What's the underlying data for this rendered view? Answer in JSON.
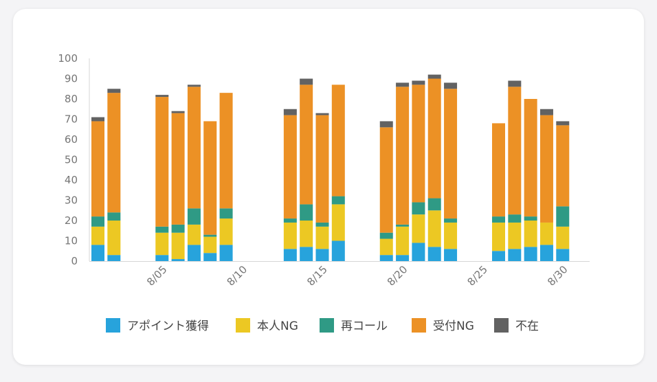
{
  "chart_data": {
    "type": "bar",
    "stacked": true,
    "title": "",
    "xlabel": "",
    "ylabel": "",
    "ylim": [
      0,
      100
    ],
    "yticks": [
      0,
      10,
      20,
      30,
      40,
      50,
      60,
      70,
      80,
      90,
      100
    ],
    "x_range": [
      1,
      31
    ],
    "xticks": [
      {
        "day": 5,
        "label": "8/05"
      },
      {
        "day": 10,
        "label": "8/10"
      },
      {
        "day": 15,
        "label": "8/15"
      },
      {
        "day": 20,
        "label": "8/20"
      },
      {
        "day": 25,
        "label": "8/25"
      },
      {
        "day": 30,
        "label": "8/30"
      }
    ],
    "days": [
      1,
      2,
      5,
      6,
      7,
      8,
      9,
      13,
      14,
      15,
      16,
      19,
      20,
      21,
      22,
      23,
      26,
      27,
      28,
      29,
      30
    ],
    "series": [
      {
        "name": "アポイント獲得",
        "color": "#27a3dc",
        "values": [
          8,
          3,
          3,
          1,
          8,
          4,
          8,
          6,
          7,
          6,
          10,
          3,
          3,
          9,
          7,
          6,
          5,
          6,
          7,
          8,
          6
        ]
      },
      {
        "name": "本人NG",
        "color": "#ecc823",
        "values": [
          9,
          17,
          11,
          13,
          10,
          8,
          13,
          13,
          13,
          11,
          18,
          8,
          14,
          14,
          18,
          13,
          14,
          13,
          13,
          11,
          11
        ]
      },
      {
        "name": "再コール",
        "color": "#2f9a85",
        "values": [
          5,
          4,
          3,
          4,
          8,
          1,
          5,
          2,
          8,
          2,
          4,
          3,
          1,
          6,
          6,
          2,
          3,
          4,
          2,
          0,
          10
        ]
      },
      {
        "name": "受付NG",
        "color": "#ec9125",
        "values": [
          47,
          59,
          64,
          55,
          60,
          56,
          57,
          51,
          59,
          53,
          55,
          52,
          68,
          58,
          59,
          64,
          46,
          63,
          58,
          53,
          40
        ]
      },
      {
        "name": "不在",
        "color": "#626262",
        "values": [
          2,
          2,
          1,
          1,
          1,
          0,
          0,
          3,
          3,
          1,
          0,
          3,
          2,
          2,
          2,
          3,
          0,
          3,
          0,
          3,
          2
        ]
      }
    ],
    "legend_position": "bottom",
    "grid": false
  }
}
